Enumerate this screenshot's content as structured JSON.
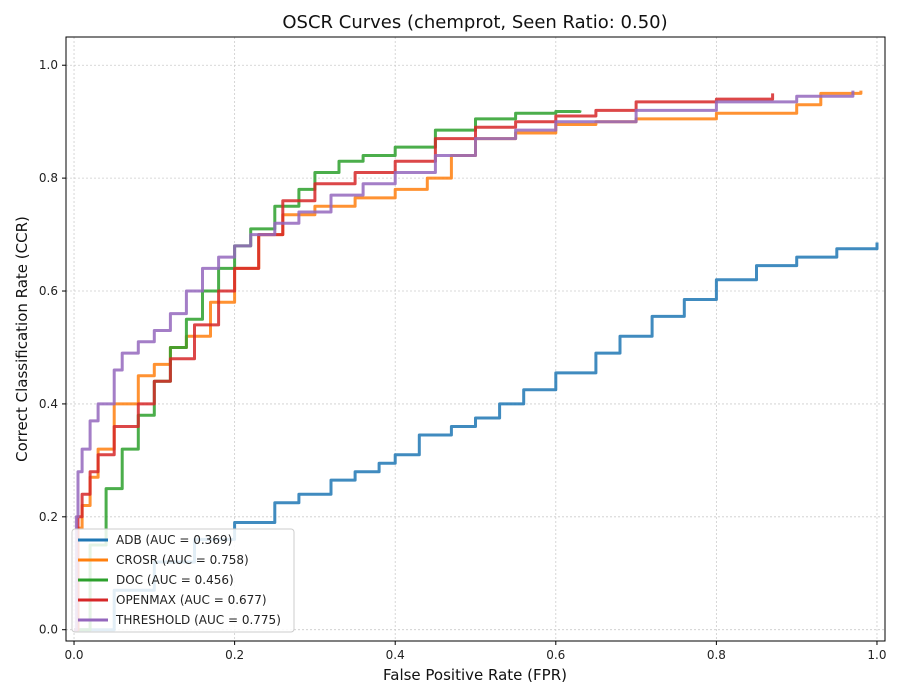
{
  "chart_data": {
    "type": "line",
    "title": "OSCR Curves (chemprot, Seen Ratio: 0.50)",
    "xlabel": "False Positive Rate (FPR)",
    "ylabel": "Correct Classification Rate (CCR)",
    "xlim": [
      -0.01,
      1.01
    ],
    "ylim": [
      -0.02,
      1.05
    ],
    "xticks": [
      0.0,
      0.2,
      0.4,
      0.6,
      0.8,
      1.0
    ],
    "xtick_labels": [
      "0.0",
      "0.2",
      "0.4",
      "0.6",
      "0.8",
      "1.0"
    ],
    "yticks": [
      0.0,
      0.2,
      0.4,
      0.6,
      0.8,
      1.0
    ],
    "ytick_labels": [
      "0.0",
      "0.2",
      "0.4",
      "0.6",
      "0.8",
      "1.0"
    ],
    "grid": true,
    "legend_position": "lower-left",
    "series": [
      {
        "name": "ADB (AUC = 0.369)",
        "color": "#1f77b4",
        "points": [
          [
            0.0,
            0.0
          ],
          [
            0.05,
            0.07
          ],
          [
            0.1,
            0.12
          ],
          [
            0.15,
            0.16
          ],
          [
            0.2,
            0.19
          ],
          [
            0.25,
            0.225
          ],
          [
            0.28,
            0.24
          ],
          [
            0.32,
            0.265
          ],
          [
            0.35,
            0.28
          ],
          [
            0.38,
            0.295
          ],
          [
            0.4,
            0.31
          ],
          [
            0.43,
            0.345
          ],
          [
            0.47,
            0.36
          ],
          [
            0.5,
            0.375
          ],
          [
            0.53,
            0.4
          ],
          [
            0.56,
            0.425
          ],
          [
            0.6,
            0.455
          ],
          [
            0.65,
            0.49
          ],
          [
            0.68,
            0.52
          ],
          [
            0.72,
            0.555
          ],
          [
            0.76,
            0.585
          ],
          [
            0.8,
            0.62
          ],
          [
            0.85,
            0.645
          ],
          [
            0.9,
            0.66
          ],
          [
            0.95,
            0.675
          ],
          [
            1.0,
            0.686
          ]
        ]
      },
      {
        "name": "CROSR (AUC = 0.758)",
        "color": "#ff7f0e",
        "points": [
          [
            0.0,
            0.0
          ],
          [
            0.005,
            0.18
          ],
          [
            0.01,
            0.22
          ],
          [
            0.02,
            0.27
          ],
          [
            0.03,
            0.32
          ],
          [
            0.05,
            0.4
          ],
          [
            0.08,
            0.45
          ],
          [
            0.1,
            0.47
          ],
          [
            0.12,
            0.5
          ],
          [
            0.14,
            0.52
          ],
          [
            0.17,
            0.58
          ],
          [
            0.2,
            0.64
          ],
          [
            0.23,
            0.7
          ],
          [
            0.26,
            0.735
          ],
          [
            0.3,
            0.75
          ],
          [
            0.35,
            0.765
          ],
          [
            0.4,
            0.78
          ],
          [
            0.44,
            0.8
          ],
          [
            0.47,
            0.84
          ],
          [
            0.5,
            0.87
          ],
          [
            0.55,
            0.88
          ],
          [
            0.6,
            0.895
          ],
          [
            0.65,
            0.9
          ],
          [
            0.7,
            0.905
          ],
          [
            0.8,
            0.915
          ],
          [
            0.9,
            0.93
          ],
          [
            0.93,
            0.95
          ],
          [
            0.98,
            0.955
          ]
        ]
      },
      {
        "name": "DOC (AUC = 0.456)",
        "color": "#2ca02c",
        "points": [
          [
            0.0,
            0.0
          ],
          [
            0.02,
            0.15
          ],
          [
            0.04,
            0.25
          ],
          [
            0.06,
            0.32
          ],
          [
            0.08,
            0.38
          ],
          [
            0.1,
            0.44
          ],
          [
            0.12,
            0.5
          ],
          [
            0.14,
            0.55
          ],
          [
            0.16,
            0.6
          ],
          [
            0.18,
            0.64
          ],
          [
            0.2,
            0.68
          ],
          [
            0.22,
            0.71
          ],
          [
            0.25,
            0.75
          ],
          [
            0.28,
            0.78
          ],
          [
            0.3,
            0.81
          ],
          [
            0.33,
            0.83
          ],
          [
            0.36,
            0.84
          ],
          [
            0.4,
            0.855
          ],
          [
            0.45,
            0.885
          ],
          [
            0.5,
            0.905
          ],
          [
            0.55,
            0.915
          ],
          [
            0.6,
            0.918
          ],
          [
            0.63,
            0.92
          ]
        ]
      },
      {
        "name": "OPENMAX (AUC = 0.677)",
        "color": "#d62728",
        "points": [
          [
            0.0,
            0.0
          ],
          [
            0.005,
            0.2
          ],
          [
            0.01,
            0.24
          ],
          [
            0.02,
            0.28
          ],
          [
            0.03,
            0.31
          ],
          [
            0.05,
            0.36
          ],
          [
            0.08,
            0.4
          ],
          [
            0.1,
            0.44
          ],
          [
            0.12,
            0.48
          ],
          [
            0.15,
            0.54
          ],
          [
            0.18,
            0.6
          ],
          [
            0.2,
            0.64
          ],
          [
            0.23,
            0.7
          ],
          [
            0.26,
            0.76
          ],
          [
            0.3,
            0.79
          ],
          [
            0.35,
            0.81
          ],
          [
            0.4,
            0.83
          ],
          [
            0.45,
            0.87
          ],
          [
            0.5,
            0.89
          ],
          [
            0.55,
            0.9
          ],
          [
            0.6,
            0.91
          ],
          [
            0.65,
            0.92
          ],
          [
            0.7,
            0.935
          ],
          [
            0.8,
            0.94
          ],
          [
            0.87,
            0.95
          ]
        ]
      },
      {
        "name": "THRESHOLD (AUC = 0.775)",
        "color": "#9467bd",
        "points": [
          [
            0.0,
            0.0
          ],
          [
            0.003,
            0.2
          ],
          [
            0.005,
            0.28
          ],
          [
            0.01,
            0.32
          ],
          [
            0.02,
            0.37
          ],
          [
            0.03,
            0.4
          ],
          [
            0.05,
            0.46
          ],
          [
            0.06,
            0.49
          ],
          [
            0.08,
            0.51
          ],
          [
            0.1,
            0.53
          ],
          [
            0.12,
            0.56
          ],
          [
            0.14,
            0.6
          ],
          [
            0.16,
            0.64
          ],
          [
            0.18,
            0.66
          ],
          [
            0.2,
            0.68
          ],
          [
            0.22,
            0.7
          ],
          [
            0.25,
            0.72
          ],
          [
            0.28,
            0.74
          ],
          [
            0.32,
            0.77
          ],
          [
            0.36,
            0.79
          ],
          [
            0.4,
            0.81
          ],
          [
            0.45,
            0.84
          ],
          [
            0.5,
            0.87
          ],
          [
            0.55,
            0.885
          ],
          [
            0.6,
            0.9
          ],
          [
            0.7,
            0.92
          ],
          [
            0.8,
            0.935
          ],
          [
            0.9,
            0.945
          ],
          [
            0.97,
            0.955
          ]
        ]
      }
    ]
  }
}
